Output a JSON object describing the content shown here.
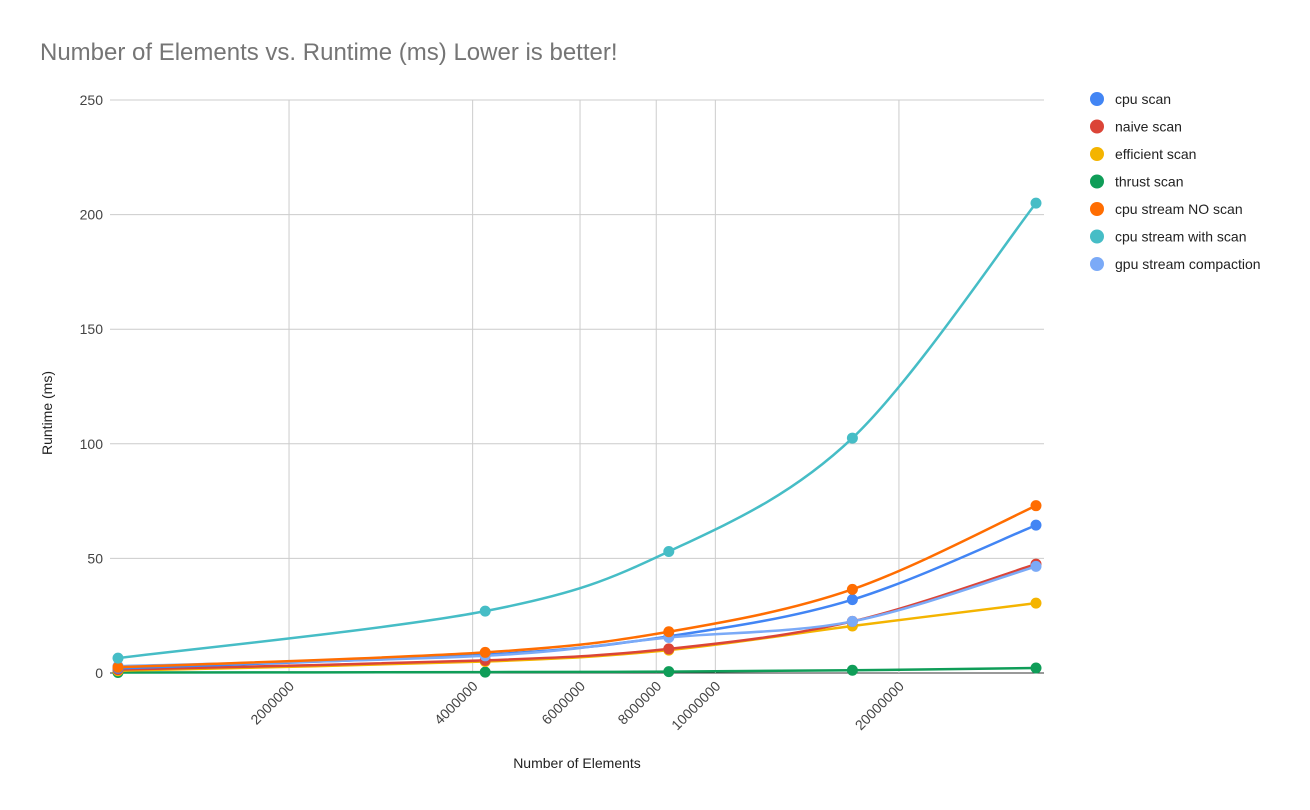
{
  "chart_data": {
    "type": "line",
    "title": "Number of Elements vs. Runtime (ms) Lower is better!",
    "xlabel": "Number of Elements",
    "ylabel": "Runtime (ms)",
    "x_scale": "log",
    "xlim": [
      1048576,
      33554432
    ],
    "ylim": [
      0,
      250
    ],
    "x_ticks": [
      2000000,
      4000000,
      6000000,
      8000000,
      10000000,
      20000000
    ],
    "x_tick_labels": [
      "2000000",
      "4000000",
      "6000000",
      "8000000",
      "10000000",
      "20000000"
    ],
    "y_ticks": [
      0,
      50,
      100,
      150,
      200,
      250
    ],
    "y_tick_labels": [
      "0",
      "50",
      "100",
      "150",
      "200",
      "250"
    ],
    "grid": true,
    "legend_position": "right",
    "x": [
      1048576,
      4194304,
      8388608,
      16777216,
      33554432
    ],
    "series": [
      {
        "name": "cpu scan",
        "color": "#4285f4",
        "values": [
          2,
          8,
          16,
          32,
          64.5
        ]
      },
      {
        "name": "naive scan",
        "color": "#db4437",
        "values": [
          1.5,
          5.5,
          10.5,
          22.5,
          47.5
        ]
      },
      {
        "name": "efficient scan",
        "color": "#f4b400",
        "values": [
          1,
          5,
          10,
          20.5,
          30.5
        ]
      },
      {
        "name": "thrust scan",
        "color": "#0f9d58",
        "values": [
          0.2,
          0.4,
          0.6,
          1.2,
          2.2
        ]
      },
      {
        "name": "cpu stream NO scan",
        "color": "#ff6d01",
        "values": [
          2.5,
          9,
          18,
          36.5,
          73
        ]
      },
      {
        "name": "cpu stream with scan",
        "color": "#46bdc6",
        "values": [
          6.5,
          27,
          53,
          102.5,
          205
        ]
      },
      {
        "name": "gpu stream compaction",
        "color": "#7baaf7",
        "values": [
          3,
          7.5,
          15.5,
          22.5,
          46.5
        ]
      }
    ]
  }
}
